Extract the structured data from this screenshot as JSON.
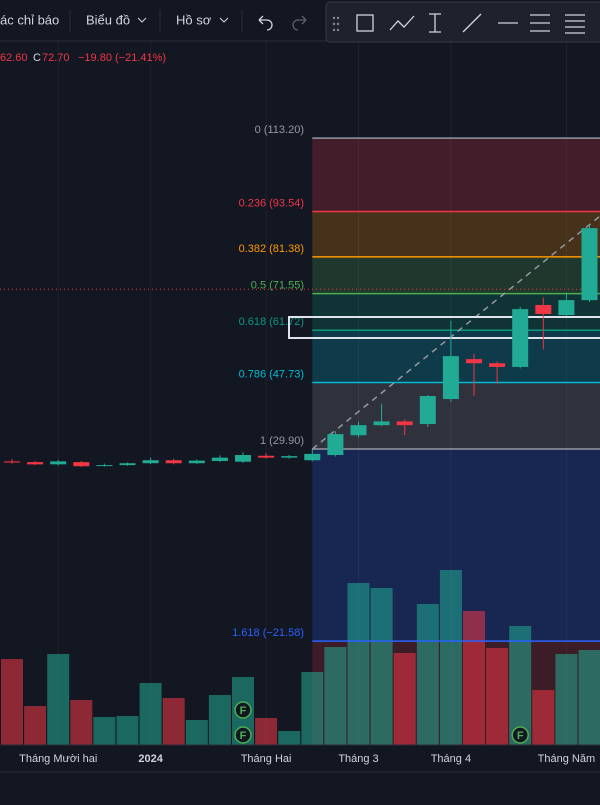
{
  "toolbar": {
    "indicators": "ác chỉ báo",
    "chart": "Biểu đồ",
    "profile": "Hồ sơ"
  },
  "legend": {
    "open_fragment": "62.60",
    "close_prefix": "C",
    "close": "72.70",
    "change": "−19.80 (−21.41%)"
  },
  "chart_data": {
    "type": "candlestick",
    "categories": [
      null,
      null,
      "Tháng Mười hai",
      null,
      null,
      null,
      "2024",
      null,
      null,
      null,
      null,
      "Tháng Hai",
      null,
      null,
      null,
      "Tháng 3",
      null,
      null,
      null,
      "Tháng 4",
      null,
      null,
      null,
      null,
      "Tháng Năm",
      null
    ],
    "open": [
      26.6,
      26.4,
      25.8,
      26.4,
      25.4,
      25.6,
      26.1,
      26.9,
      26.1,
      26.7,
      26.5,
      28.1,
      27.6,
      26.9,
      28.3,
      33.6,
      36.3,
      37.3,
      36.6,
      43.3,
      54.0,
      52.9,
      51.9,
      68.5,
      65.8,
      69.8
    ],
    "high": [
      27.2,
      26.7,
      27.0,
      26.7,
      26.0,
      26.3,
      27.6,
      27.3,
      27.1,
      28.2,
      29.0,
      28.8,
      28.3,
      29.9,
      34.7,
      37.2,
      42.0,
      37.8,
      44.4,
      64.3,
      55.4,
      53.4,
      68.0,
      70.5,
      71.8,
      90.0
    ],
    "low": [
      26.0,
      25.6,
      25.5,
      25.1,
      25.2,
      25.4,
      25.9,
      25.8,
      25.9,
      26.5,
      26.2,
      27.3,
      27.3,
      26.6,
      27.9,
      33.0,
      36.0,
      33.6,
      35.8,
      42.5,
      44.2,
      47.4,
      51.5,
      56.6,
      65.5,
      69.3
    ],
    "close": [
      26.3,
      25.8,
      26.6,
      25.3,
      25.6,
      26.1,
      26.9,
      26.1,
      26.8,
      27.6,
      28.3,
      27.6,
      28.0,
      28.6,
      33.9,
      36.3,
      37.3,
      36.3,
      44.1,
      54.8,
      52.9,
      51.9,
      67.4,
      66.1,
      69.8,
      89.1
    ],
    "volume": [
      86,
      39,
      91,
      45,
      28,
      29,
      62,
      47,
      25,
      50,
      68,
      27,
      14,
      73,
      98,
      162,
      157,
      92,
      141,
      175,
      134,
      97,
      119,
      55,
      91,
      95
    ],
    "ylim": [
      -49.4,
      139.5
    ],
    "volume_lim": [
      0,
      200
    ],
    "up_color": "#22ab94",
    "down_color": "#f23645",
    "price_line": 72.7,
    "fib_levels": [
      {
        "label": "0 (113.20)",
        "price": 113.2,
        "color": "#9598a1"
      },
      {
        "label": "0.236 (93.54)",
        "price": 93.54,
        "color": "#f23645"
      },
      {
        "label": "0.382 (81.38)",
        "price": 81.38,
        "color": "#ff9800"
      },
      {
        "label": "0.5 (71.55)",
        "price": 71.55,
        "color": "#4caf50"
      },
      {
        "label": "0.618 (61.72)",
        "price": 61.72,
        "color": "#089981"
      },
      {
        "label": "0.786 (47.73)",
        "price": 47.73,
        "color": "#00bcd4"
      },
      {
        "label": "1 (29.90)",
        "price": 29.9,
        "color": "#9598a1"
      },
      {
        "label": "1.618 (−21.58)",
        "price": -21.58,
        "color": "#2962ff"
      }
    ],
    "event_label": "F"
  }
}
